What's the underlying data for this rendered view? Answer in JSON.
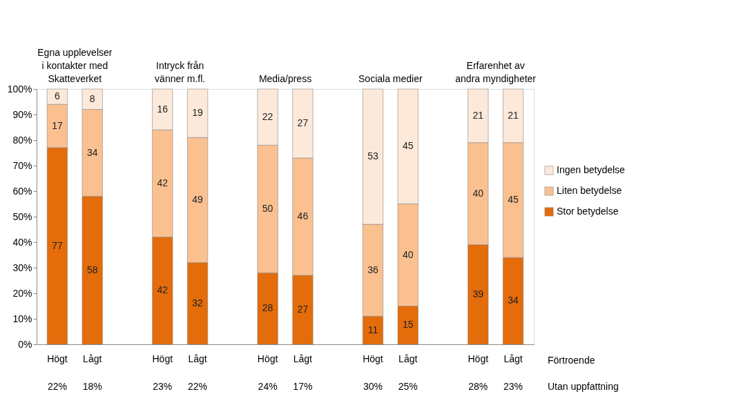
{
  "chart_data": {
    "type": "bar",
    "stacked": true,
    "categories": [
      "Högt",
      "Lågt",
      "Högt",
      "Lågt",
      "Högt",
      "Lågt",
      "Högt",
      "Lågt",
      "Högt",
      "Lågt"
    ],
    "series": [
      {
        "name": "Stor betydelse",
        "color": "#e46c0a",
        "values": [
          77,
          58,
          42,
          32,
          28,
          27,
          11,
          15,
          39,
          34
        ]
      },
      {
        "name": "Liten betydelse",
        "color": "#fac090",
        "values": [
          17,
          34,
          42,
          49,
          50,
          46,
          36,
          40,
          40,
          45
        ]
      },
      {
        "name": "Ingen betydelse",
        "color": "#fde9d9",
        "values": [
          6,
          8,
          16,
          19,
          22,
          27,
          53,
          45,
          21,
          21
        ]
      }
    ],
    "ylim": [
      0,
      100
    ],
    "yticks": [
      {
        "value": 0,
        "label": "0%"
      },
      {
        "value": 10,
        "label": "10%"
      },
      {
        "value": 20,
        "label": "20%"
      },
      {
        "value": 30,
        "label": "30%"
      },
      {
        "value": 40,
        "label": "40%"
      },
      {
        "value": 50,
        "label": "50%"
      },
      {
        "value": 60,
        "label": "60%"
      },
      {
        "value": 70,
        "label": "70%"
      },
      {
        "value": 80,
        "label": "80%"
      },
      {
        "value": 90,
        "label": "90%"
      },
      {
        "value": 100,
        "label": "100%"
      }
    ],
    "grid": false,
    "legend": "right",
    "data_labels": true,
    "annotations": [
      "Egna upplevelser\ni kontakter med\nSkatteverket",
      "Intryck från\nvänner m.fl.",
      "Media/press",
      "Sociala medier",
      "Erfarenhet av\nandra myndigheter",
      "Förtroende",
      "22%",
      "18%",
      "23%",
      "22%",
      "24%",
      "17%",
      "30%",
      "25%",
      "28%",
      "23%",
      "Utan uppfattning"
    ]
  }
}
